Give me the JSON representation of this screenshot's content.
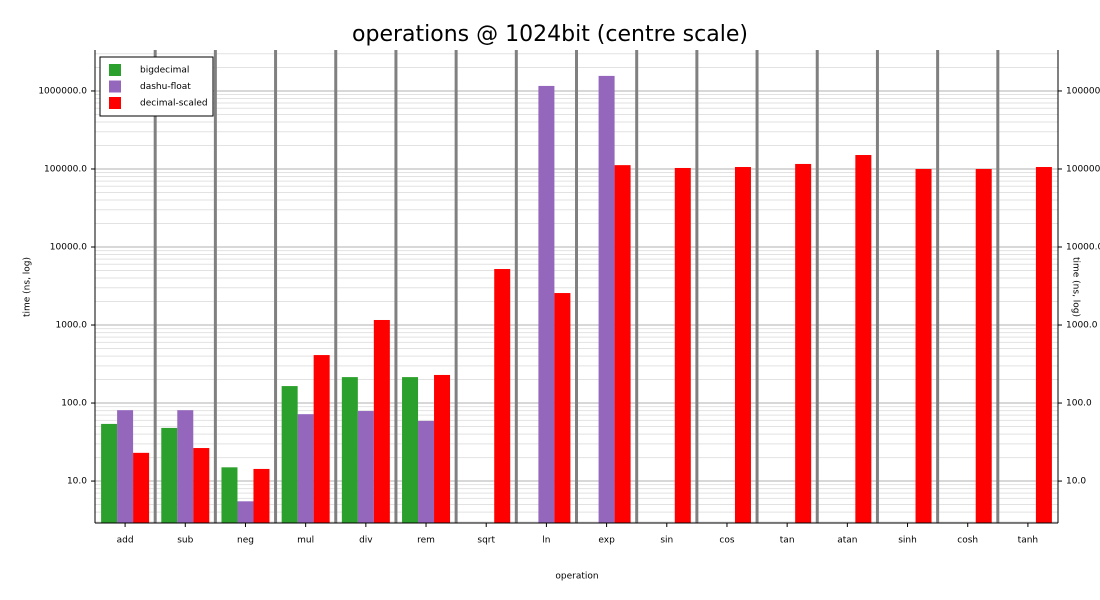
{
  "chart_data": {
    "type": "bar",
    "title": "operations @ 1024bit (centre scale)",
    "x_label": "operation",
    "y_label": "time (ns, log)",
    "y2_label": "time (ns, log)",
    "categories": [
      "add",
      "sub",
      "neg",
      "mul",
      "div",
      "rem",
      "sqrt",
      "ln",
      "exp",
      "sin",
      "cos",
      "tan",
      "atan",
      "sinh",
      "cosh",
      "tanh"
    ],
    "series": [
      {
        "name": "bigdecimal",
        "color": "#2ca02c",
        "values": [
          54,
          48,
          15,
          165,
          215,
          215,
          null,
          null,
          null,
          null,
          null,
          null,
          null,
          null,
          null,
          null
        ]
      },
      {
        "name": "dashu-float",
        "color": "#9467bd",
        "values": [
          81,
          81,
          5.5,
          72,
          79,
          59,
          null,
          1160000,
          1560000,
          null,
          null,
          null,
          null,
          null,
          null,
          null
        ]
      },
      {
        "name": "decimal-scaled",
        "color": "#ff0000",
        "values": [
          23,
          26.5,
          14.3,
          412,
          1160,
          229,
          5220,
          2570,
          112000,
          103000,
          106000,
          116000,
          151000,
          100000,
          100000,
          106000
        ]
      }
    ],
    "log_scale": true,
    "ylim": [
      2.9,
      3350000
    ],
    "yticks": [
      {
        "value": 10,
        "label": "10.0"
      },
      {
        "value": 100,
        "label": "100.0"
      },
      {
        "value": 1000,
        "label": "1000.0"
      },
      {
        "value": 10000,
        "label": "10000.0"
      },
      {
        "value": 100000,
        "label": "100000.0"
      },
      {
        "value": 1000000,
        "label": "1000000.0"
      }
    ],
    "grid": true,
    "minor_grid": true,
    "legend": "upper-left"
  }
}
